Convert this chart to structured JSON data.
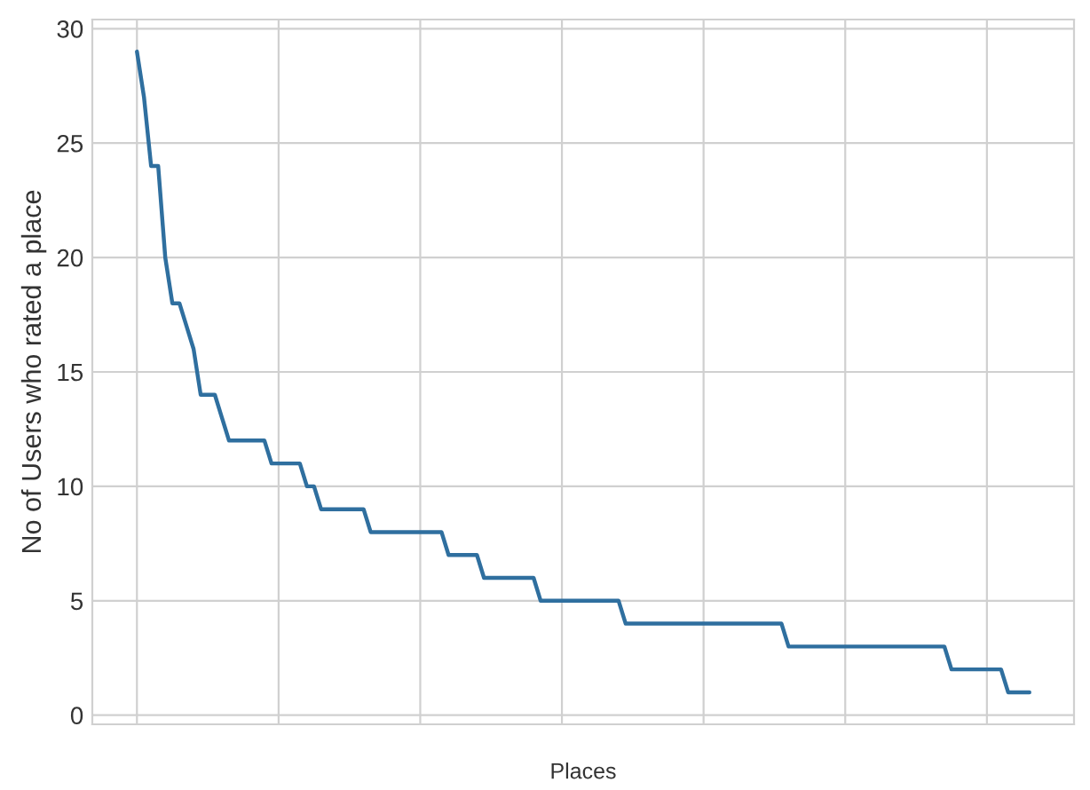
{
  "chart_data": {
    "type": "line",
    "xlabel": "Places",
    "ylabel": "No of Users who rated a place",
    "categories": [
      null,
      null,
      null,
      null,
      null,
      null,
      null,
      null,
      null,
      null,
      null,
      null,
      null,
      null,
      null,
      null,
      null,
      null,
      null,
      null,
      null,
      null,
      null,
      null,
      null,
      null,
      null,
      null,
      null,
      null,
      null,
      null,
      null,
      null,
      null,
      null,
      null,
      null,
      null,
      null,
      null,
      null,
      null,
      null,
      null,
      null,
      null,
      null,
      null,
      null,
      null,
      null,
      null,
      null,
      null,
      null,
      null,
      null,
      null,
      null,
      null,
      null,
      null,
      null,
      null,
      null,
      null,
      null,
      null,
      null,
      null,
      null,
      null,
      null,
      null,
      null,
      null,
      null,
      null,
      null,
      null,
      null,
      null,
      null,
      null,
      null,
      null,
      null,
      null,
      null,
      null,
      null,
      null,
      null,
      null,
      null,
      null,
      null,
      null,
      null,
      null,
      null,
      null,
      null,
      null,
      null,
      null,
      null,
      null,
      null,
      null,
      null,
      null,
      null,
      null,
      null,
      null,
      null,
      null,
      null,
      null,
      null,
      null,
      null,
      null,
      null,
      null
    ],
    "series": [
      {
        "color": "#2f6f9f",
        "values": [
          29,
          27,
          24,
          24,
          20,
          18,
          18,
          17,
          16,
          14,
          14,
          14,
          13,
          12,
          12,
          12,
          12,
          12,
          12,
          11,
          11,
          11,
          11,
          11,
          10,
          10,
          9,
          9,
          9,
          9,
          9,
          9,
          9,
          8,
          8,
          8,
          8,
          8,
          8,
          8,
          8,
          8,
          8,
          8,
          7,
          7,
          7,
          7,
          7,
          6,
          6,
          6,
          6,
          6,
          6,
          6,
          6,
          5,
          5,
          5,
          5,
          5,
          5,
          5,
          5,
          5,
          5,
          5,
          5,
          4,
          4,
          4,
          4,
          4,
          4,
          4,
          4,
          4,
          4,
          4,
          4,
          4,
          4,
          4,
          4,
          4,
          4,
          4,
          4,
          4,
          4,
          4,
          3,
          3,
          3,
          3,
          3,
          3,
          3,
          3,
          3,
          3,
          3,
          3,
          3,
          3,
          3,
          3,
          3,
          3,
          3,
          3,
          3,
          3,
          3,
          2,
          2,
          2,
          2,
          2,
          2,
          2,
          2,
          1,
          1,
          1,
          1
        ]
      }
    ],
    "ylim": [
      -0.4,
      30.4
    ],
    "yticks": [
      0,
      5,
      10,
      15,
      20,
      25,
      30
    ],
    "grid": true
  }
}
